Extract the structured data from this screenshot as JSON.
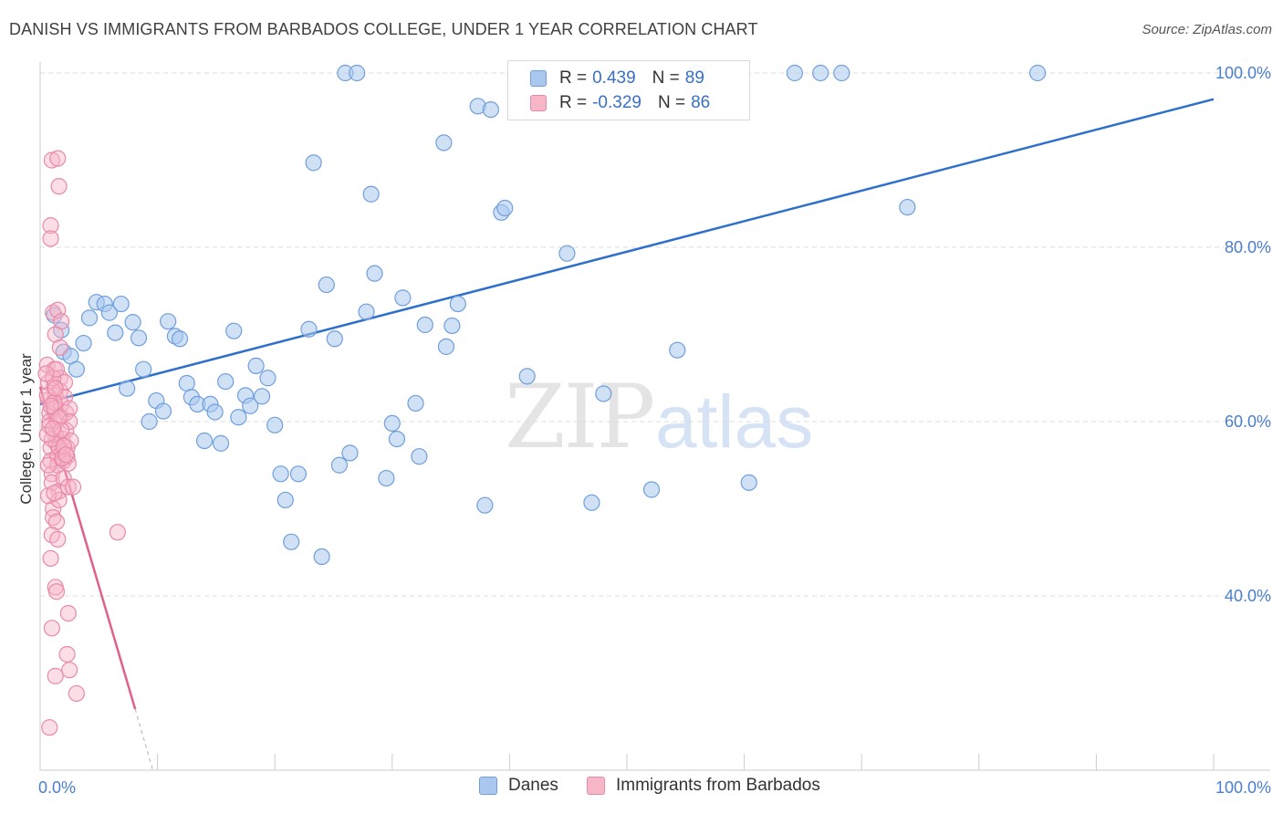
{
  "title": "DANISH VS IMMIGRANTS FROM BARBADOS COLLEGE, UNDER 1 YEAR CORRELATION CHART",
  "source": "Source: ZipAtlas.com",
  "watermark": {
    "zip": "ZIP",
    "atlas": "atlas"
  },
  "colors": {
    "blue_fill": "#aac8ef",
    "blue_stroke": "#6f9fdc",
    "blue_line": "#2f6fcc",
    "pink_fill": "#f6b6c8",
    "pink_stroke": "#e989a8",
    "pink_line": "#e0608c",
    "tick_text": "#4a7fcf",
    "grid": "#dddddd"
  },
  "legend": {
    "rows": [
      {
        "r_label": "R =",
        "r_value": "0.439",
        "n_label": "N =",
        "n_value": "89"
      },
      {
        "r_label": "R =",
        "r_value": "-0.329",
        "n_label": "N =",
        "n_value": "86"
      }
    ]
  },
  "bottom_legend": [
    "Danes",
    "Immigrants from Barbados"
  ],
  "chart_data": {
    "type": "scatter",
    "xlabel": "",
    "ylabel": "College, Under 1 year",
    "xlim": [
      0,
      100
    ],
    "ylim": [
      20,
      100
    ],
    "x_tick_labels": [
      "0.0%",
      "100.0%"
    ],
    "y_tick_labels": [
      "40.0%",
      "60.0%",
      "80.0%",
      "100.0%"
    ],
    "y_ticks": [
      40,
      60,
      80,
      100
    ],
    "grid": true,
    "legend": "top-center",
    "series": [
      {
        "name": "Danes",
        "color": "blue",
        "trend": {
          "x": [
            0,
            100
          ],
          "y": [
            62.0,
            97.0
          ]
        },
        "points": [
          [
            1.2,
            72.2
          ],
          [
            1.8,
            70.5
          ],
          [
            2.0,
            68.0
          ],
          [
            2.6,
            67.5
          ],
          [
            3.1,
            66.0
          ],
          [
            3.7,
            69.0
          ],
          [
            4.2,
            71.9
          ],
          [
            4.8,
            73.7
          ],
          [
            5.5,
            73.5
          ],
          [
            5.9,
            72.5
          ],
          [
            6.4,
            70.2
          ],
          [
            6.9,
            73.5
          ],
          [
            7.4,
            63.8
          ],
          [
            7.9,
            71.4
          ],
          [
            8.4,
            69.6
          ],
          [
            8.8,
            66.0
          ],
          [
            9.3,
            60.0
          ],
          [
            9.9,
            62.4
          ],
          [
            10.5,
            61.2
          ],
          [
            10.9,
            71.5
          ],
          [
            11.5,
            69.8
          ],
          [
            11.9,
            69.5
          ],
          [
            12.5,
            64.4
          ],
          [
            12.9,
            62.8
          ],
          [
            13.4,
            62.0
          ],
          [
            14.0,
            57.8
          ],
          [
            14.5,
            62.0
          ],
          [
            14.9,
            61.1
          ],
          [
            15.4,
            57.5
          ],
          [
            15.8,
            64.6
          ],
          [
            16.5,
            70.4
          ],
          [
            16.9,
            60.5
          ],
          [
            17.5,
            63.0
          ],
          [
            17.9,
            61.8
          ],
          [
            18.4,
            66.4
          ],
          [
            18.9,
            62.9
          ],
          [
            19.4,
            65.0
          ],
          [
            20.0,
            59.6
          ],
          [
            20.5,
            54.0
          ],
          [
            20.9,
            51.0
          ],
          [
            21.4,
            46.2
          ],
          [
            22.0,
            54.0
          ],
          [
            22.9,
            70.6
          ],
          [
            23.3,
            89.7
          ],
          [
            24.0,
            44.5
          ],
          [
            24.4,
            75.7
          ],
          [
            25.1,
            69.5
          ],
          [
            25.5,
            55.0
          ],
          [
            26.0,
            100.0
          ],
          [
            26.4,
            56.4
          ],
          [
            27.0,
            100.0
          ],
          [
            27.8,
            72.6
          ],
          [
            28.2,
            86.1
          ],
          [
            28.5,
            77.0
          ],
          [
            29.5,
            53.5
          ],
          [
            30.0,
            59.8
          ],
          [
            30.4,
            58.0
          ],
          [
            30.9,
            74.2
          ],
          [
            32.0,
            62.1
          ],
          [
            32.3,
            56.0
          ],
          [
            32.8,
            71.1
          ],
          [
            34.4,
            92.0
          ],
          [
            34.6,
            68.6
          ],
          [
            35.1,
            71.0
          ],
          [
            35.6,
            73.5
          ],
          [
            37.3,
            96.2
          ],
          [
            37.9,
            50.4
          ],
          [
            38.4,
            95.8
          ],
          [
            39.3,
            84.0
          ],
          [
            39.6,
            84.5
          ],
          [
            41.5,
            65.2
          ],
          [
            42.4,
            100.0
          ],
          [
            44.9,
            79.3
          ],
          [
            47.0,
            50.7
          ],
          [
            48.0,
            63.2
          ],
          [
            52.1,
            52.2
          ],
          [
            54.3,
            68.2
          ],
          [
            56.0,
            100.0
          ],
          [
            60.4,
            53.0
          ],
          [
            64.3,
            100.0
          ],
          [
            66.5,
            100.0
          ],
          [
            68.3,
            100.0
          ],
          [
            73.9,
            84.6
          ],
          [
            85.0,
            100.0
          ]
        ]
      },
      {
        "name": "Immigrants from Barbados",
        "color": "pink",
        "trend": {
          "x": [
            0,
            8.1
          ],
          "y": [
            64.0,
            27.0
          ]
        },
        "trend_dashed": {
          "x": [
            8.1,
            9.6
          ],
          "y": [
            27.0,
            20.0
          ]
        },
        "points": [
          [
            0.6,
            66.5
          ],
          [
            0.7,
            64.5
          ],
          [
            0.7,
            62.5
          ],
          [
            0.8,
            61.0
          ],
          [
            0.8,
            60.0
          ],
          [
            0.9,
            57.0
          ],
          [
            0.9,
            55.5
          ],
          [
            1.0,
            54.0
          ],
          [
            1.0,
            53.0
          ],
          [
            1.1,
            50.0
          ],
          [
            1.1,
            49.0
          ],
          [
            1.2,
            66.0
          ],
          [
            1.2,
            64.0
          ],
          [
            1.3,
            63.0
          ],
          [
            1.3,
            61.5
          ],
          [
            1.4,
            60.0
          ],
          [
            1.4,
            57.5
          ],
          [
            1.5,
            56.0
          ],
          [
            1.5,
            55.0
          ],
          [
            1.6,
            52.0
          ],
          [
            1.6,
            51.0
          ],
          [
            1.7,
            65.0
          ],
          [
            1.7,
            63.5
          ],
          [
            1.8,
            62.0
          ],
          [
            1.8,
            60.5
          ],
          [
            1.9,
            58.0
          ],
          [
            1.9,
            56.5
          ],
          [
            2.0,
            55.5
          ],
          [
            2.0,
            53.5
          ],
          [
            2.1,
            64.5
          ],
          [
            2.1,
            62.8
          ],
          [
            2.2,
            61.0
          ],
          [
            2.2,
            59.0
          ],
          [
            2.3,
            57.0
          ],
          [
            2.3,
            56.0
          ],
          [
            2.4,
            55.2
          ],
          [
            2.4,
            52.5
          ],
          [
            2.5,
            61.5
          ],
          [
            2.5,
            60.0
          ],
          [
            2.6,
            57.8
          ],
          [
            1.0,
            90.0
          ],
          [
            1.5,
            90.2
          ],
          [
            1.6,
            87.0
          ],
          [
            0.9,
            82.5
          ],
          [
            0.9,
            81.0
          ],
          [
            1.1,
            72.5
          ],
          [
            1.5,
            72.8
          ],
          [
            1.8,
            71.5
          ],
          [
            1.3,
            70.0
          ],
          [
            1.7,
            68.5
          ],
          [
            1.1,
            65.0
          ],
          [
            1.3,
            58.5
          ],
          [
            1.6,
            57.0
          ],
          [
            1.9,
            55.8
          ],
          [
            2.8,
            52.5
          ],
          [
            0.7,
            51.5
          ],
          [
            1.2,
            51.8
          ],
          [
            1.4,
            48.5
          ],
          [
            1.0,
            47.0
          ],
          [
            1.5,
            46.5
          ],
          [
            6.6,
            47.3
          ],
          [
            0.9,
            44.3
          ],
          [
            1.3,
            41.0
          ],
          [
            1.4,
            40.5
          ],
          [
            2.4,
            38.0
          ],
          [
            1.0,
            36.3
          ],
          [
            2.3,
            33.3
          ],
          [
            2.5,
            31.5
          ],
          [
            1.3,
            30.8
          ],
          [
            3.1,
            28.8
          ],
          [
            0.8,
            24.9
          ],
          [
            0.6,
            63.0
          ],
          [
            0.8,
            59.5
          ],
          [
            1.0,
            58.0
          ],
          [
            1.2,
            62.2
          ],
          [
            1.4,
            66.0
          ],
          [
            1.6,
            60.5
          ],
          [
            1.8,
            59.0
          ],
          [
            2.0,
            57.2
          ],
          [
            2.2,
            56.2
          ],
          [
            0.5,
            65.5
          ],
          [
            0.6,
            58.5
          ],
          [
            0.7,
            55.0
          ],
          [
            0.9,
            61.8
          ],
          [
            1.1,
            59.2
          ],
          [
            1.3,
            63.8
          ]
        ]
      }
    ]
  }
}
